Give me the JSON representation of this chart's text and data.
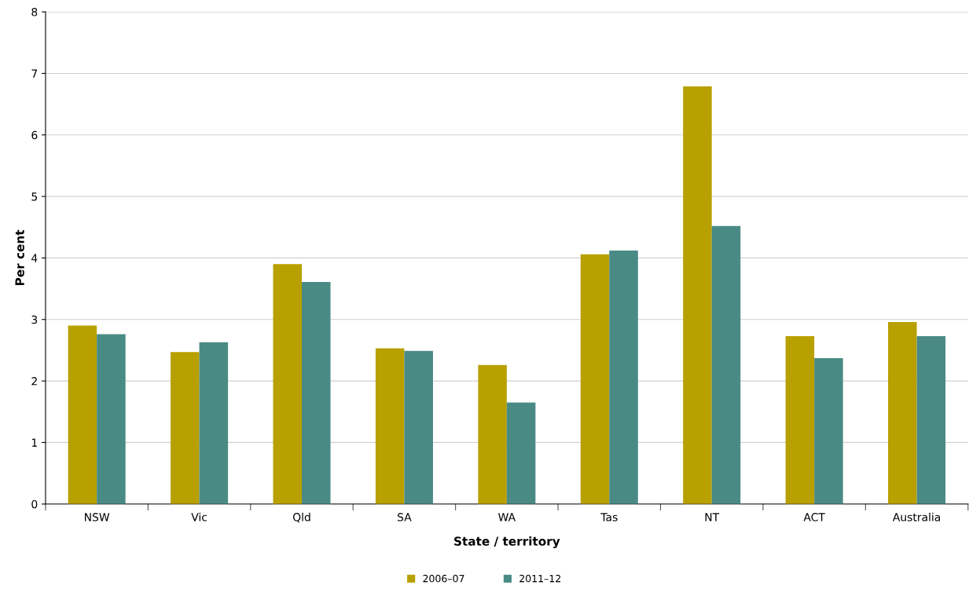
{
  "chart_data": {
    "type": "bar",
    "xlabel": "State / territory",
    "ylabel": "Per cent",
    "categories": [
      "NSW",
      "Vic",
      "Qld",
      "SA",
      "WA",
      "Tas",
      "NT",
      "ACT",
      "Australia"
    ],
    "series": [
      {
        "name": "2006–07",
        "color": "#b8a000",
        "values": [
          2.9,
          2.47,
          3.9,
          2.53,
          2.26,
          4.06,
          6.79,
          2.73,
          2.96
        ]
      },
      {
        "name": "2011–12",
        "color": "#4a8a84",
        "values": [
          2.76,
          2.63,
          3.61,
          2.49,
          1.65,
          4.12,
          4.52,
          2.37,
          2.73
        ]
      }
    ],
    "ylim": [
      0,
      8
    ],
    "yticks": [
      0,
      1,
      2,
      3,
      4,
      5,
      6,
      7,
      8
    ],
    "grid": "y",
    "legend": "bottom"
  }
}
